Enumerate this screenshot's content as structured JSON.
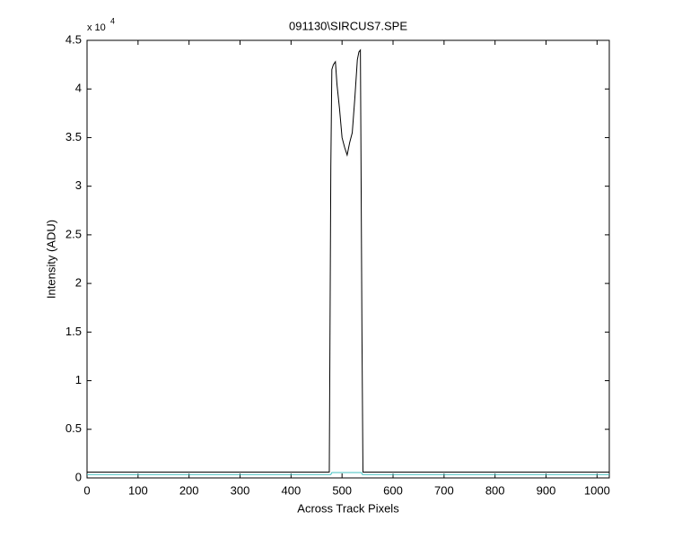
{
  "chart_data": {
    "type": "line",
    "title": "091130\\SIRCUS7.SPE",
    "x_label": "Across Track Pixels",
    "y_label": "Intensity (ADU)",
    "y_multiplier": "x 10",
    "y_exponent": "4",
    "xlim": [
      0,
      1024
    ],
    "xticks": [
      0,
      100,
      200,
      300,
      400,
      500,
      600,
      700,
      800,
      900,
      1000
    ],
    "ylim": [
      0,
      45000
    ],
    "yticks": [
      0,
      {
        "value": 5000,
        "label": "0.5"
      },
      {
        "value": 10000,
        "label": "1"
      },
      {
        "value": 15000,
        "label": "1.5"
      },
      {
        "value": 20000,
        "label": "2"
      },
      {
        "value": 25000,
        "label": "2.5"
      },
      {
        "value": 30000,
        "label": "3"
      },
      {
        "value": 35000,
        "label": "3.5"
      },
      {
        "value": 40000,
        "label": "4"
      },
      {
        "value": 45000,
        "label": "4.5"
      }
    ],
    "grid": false,
    "series": [
      {
        "color": "#000000",
        "x": [
          0,
          475,
          478,
          480,
          483,
          487,
          490,
          495,
          500,
          505,
          510,
          515,
          520,
          525,
          530,
          533,
          536,
          539,
          541,
          1024
        ],
        "values": [
          600,
          600,
          32000,
          42000,
          42500,
          42800,
          40500,
          38000,
          35000,
          34000,
          33200,
          34500,
          35500,
          39000,
          43000,
          43800,
          44000,
          15000,
          600,
          600
        ]
      },
      {
        "color": "#40c0c0",
        "x": [
          0,
          478,
          480,
          538,
          540,
          1024
        ],
        "values": [
          350,
          350,
          550,
          550,
          350,
          350
        ]
      }
    ]
  }
}
